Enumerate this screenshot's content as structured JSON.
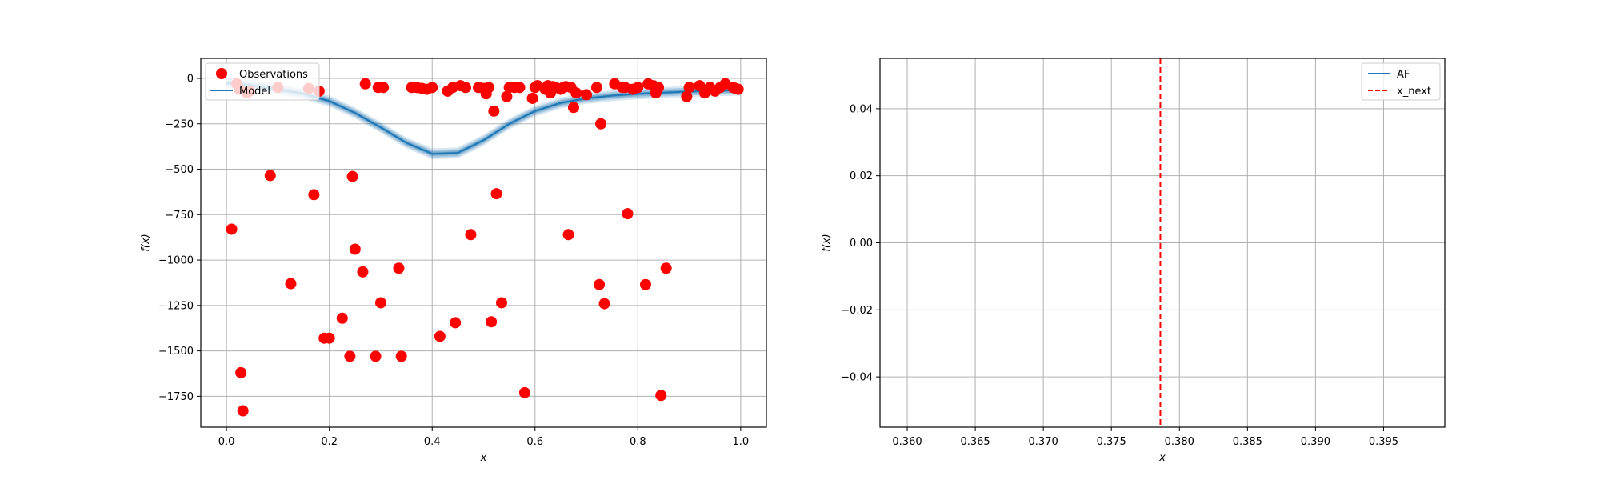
{
  "chart_data": [
    {
      "type": "scatter",
      "xlabel": "x",
      "ylabel": "f(x)",
      "xlim": [
        -0.05,
        1.05
      ],
      "ylim": [
        -1920,
        110
      ],
      "xticks": [
        0.0,
        0.2,
        0.4,
        0.6,
        0.8,
        1.0
      ],
      "xtick_labels": [
        "0.0",
        "0.2",
        "0.4",
        "0.6",
        "0.8",
        "1.0"
      ],
      "yticks": [
        0,
        -250,
        -500,
        -750,
        -1000,
        -1250,
        -1500,
        -1750
      ],
      "ytick_labels": [
        "0",
        "−250",
        "−500",
        "−750",
        "−1000",
        "−1250",
        "−1500",
        "−1750"
      ],
      "grid": true,
      "legend": {
        "placement": "upper-left",
        "entries": [
          "Observations",
          "Model"
        ]
      },
      "colors": {
        "observations": "#ff0000",
        "model": "#1f77b4"
      },
      "series": [
        {
          "name": "Observations",
          "kind": "scatter",
          "points": [
            [
              0.01,
              -830
            ],
            [
              0.02,
              -30
            ],
            [
              0.025,
              -60
            ],
            [
              0.028,
              -1620
            ],
            [
              0.032,
              -1830
            ],
            [
              0.04,
              -80
            ],
            [
              0.045,
              -70
            ],
            [
              0.085,
              -535
            ],
            [
              0.1,
              -50
            ],
            [
              0.125,
              -1130
            ],
            [
              0.16,
              -55
            ],
            [
              0.17,
              -640
            ],
            [
              0.18,
              -70
            ],
            [
              0.19,
              -1430
            ],
            [
              0.2,
              -1430
            ],
            [
              0.225,
              -1320
            ],
            [
              0.24,
              -1530
            ],
            [
              0.245,
              -540
            ],
            [
              0.25,
              -940
            ],
            [
              0.265,
              -1065
            ],
            [
              0.27,
              -30
            ],
            [
              0.29,
              -1530
            ],
            [
              0.295,
              -50
            ],
            [
              0.3,
              -1235
            ],
            [
              0.305,
              -50
            ],
            [
              0.335,
              -1045
            ],
            [
              0.34,
              -1530
            ],
            [
              0.36,
              -50
            ],
            [
              0.37,
              -50
            ],
            [
              0.38,
              -55
            ],
            [
              0.39,
              -60
            ],
            [
              0.4,
              -50
            ],
            [
              0.415,
              -1420
            ],
            [
              0.43,
              -70
            ],
            [
              0.44,
              -50
            ],
            [
              0.445,
              -1345
            ],
            [
              0.455,
              -40
            ],
            [
              0.465,
              -50
            ],
            [
              0.475,
              -860
            ],
            [
              0.49,
              -50
            ],
            [
              0.5,
              -55
            ],
            [
              0.505,
              -85
            ],
            [
              0.51,
              -50
            ],
            [
              0.515,
              -1340
            ],
            [
              0.52,
              -180
            ],
            [
              0.525,
              -635
            ],
            [
              0.535,
              -1235
            ],
            [
              0.545,
              -100
            ],
            [
              0.55,
              -50
            ],
            [
              0.56,
              -50
            ],
            [
              0.57,
              -50
            ],
            [
              0.58,
              -1730
            ],
            [
              0.595,
              -110
            ],
            [
              0.6,
              -50
            ],
            [
              0.605,
              -40
            ],
            [
              0.62,
              -60
            ],
            [
              0.625,
              -40
            ],
            [
              0.63,
              -80
            ],
            [
              0.635,
              -45
            ],
            [
              0.64,
              -50
            ],
            [
              0.65,
              -60
            ],
            [
              0.655,
              -50
            ],
            [
              0.66,
              -45
            ],
            [
              0.665,
              -860
            ],
            [
              0.67,
              -50
            ],
            [
              0.675,
              -160
            ],
            [
              0.68,
              -80
            ],
            [
              0.7,
              -90
            ],
            [
              0.72,
              -50
            ],
            [
              0.725,
              -1135
            ],
            [
              0.728,
              -250
            ],
            [
              0.735,
              -1240
            ],
            [
              0.755,
              -30
            ],
            [
              0.77,
              -50
            ],
            [
              0.775,
              -50
            ],
            [
              0.78,
              -745
            ],
            [
              0.79,
              -60
            ],
            [
              0.8,
              -50
            ],
            [
              0.815,
              -1135
            ],
            [
              0.82,
              -30
            ],
            [
              0.83,
              -40
            ],
            [
              0.835,
              -80
            ],
            [
              0.84,
              -50
            ],
            [
              0.845,
              -1745
            ],
            [
              0.855,
              -1045
            ],
            [
              0.895,
              -100
            ],
            [
              0.9,
              -50
            ],
            [
              0.92,
              -40
            ],
            [
              0.93,
              -80
            ],
            [
              0.94,
              -50
            ],
            [
              0.95,
              -70
            ],
            [
              0.96,
              -50
            ],
            [
              0.97,
              -30
            ],
            [
              0.985,
              -50
            ],
            [
              0.99,
              -55
            ],
            [
              0.995,
              -60
            ]
          ]
        },
        {
          "name": "Model",
          "kind": "line",
          "x": [
            0.0,
            0.05,
            0.1,
            0.15,
            0.2,
            0.25,
            0.3,
            0.35,
            0.4,
            0.45,
            0.5,
            0.55,
            0.6,
            0.65,
            0.7,
            0.75,
            0.8,
            0.85,
            0.9,
            0.95,
            1.0
          ],
          "y": [
            -25,
            -40,
            -60,
            -85,
            -125,
            -190,
            -270,
            -355,
            -415,
            -410,
            -340,
            -250,
            -180,
            -135,
            -110,
            -95,
            -85,
            -78,
            -72,
            -68,
            -65
          ],
          "band": 30
        }
      ]
    },
    {
      "type": "line",
      "xlabel": "x",
      "ylabel": "f(x)",
      "xlim": [
        0.358,
        0.3995
      ],
      "ylim": [
        -0.055,
        0.055
      ],
      "xticks": [
        0.36,
        0.365,
        0.37,
        0.375,
        0.38,
        0.385,
        0.39,
        0.395
      ],
      "xtick_labels": [
        "0.360",
        "0.365",
        "0.370",
        "0.375",
        "0.380",
        "0.385",
        "0.390",
        "0.395"
      ],
      "yticks": [
        0.04,
        0.02,
        0.0,
        -0.02,
        -0.04
      ],
      "ytick_labels": [
        "0.04",
        "0.02",
        "0.00",
        "−0.02",
        "−0.04"
      ],
      "grid": true,
      "legend": {
        "placement": "upper-right",
        "entries": [
          "AF",
          "x_next"
        ]
      },
      "colors": {
        "af": "#1f77b4",
        "x_next": "#ff0000"
      },
      "series": [
        {
          "name": "AF",
          "kind": "line",
          "x": [],
          "y": []
        },
        {
          "name": "x_next",
          "kind": "vline",
          "x": 0.3786
        }
      ]
    }
  ]
}
